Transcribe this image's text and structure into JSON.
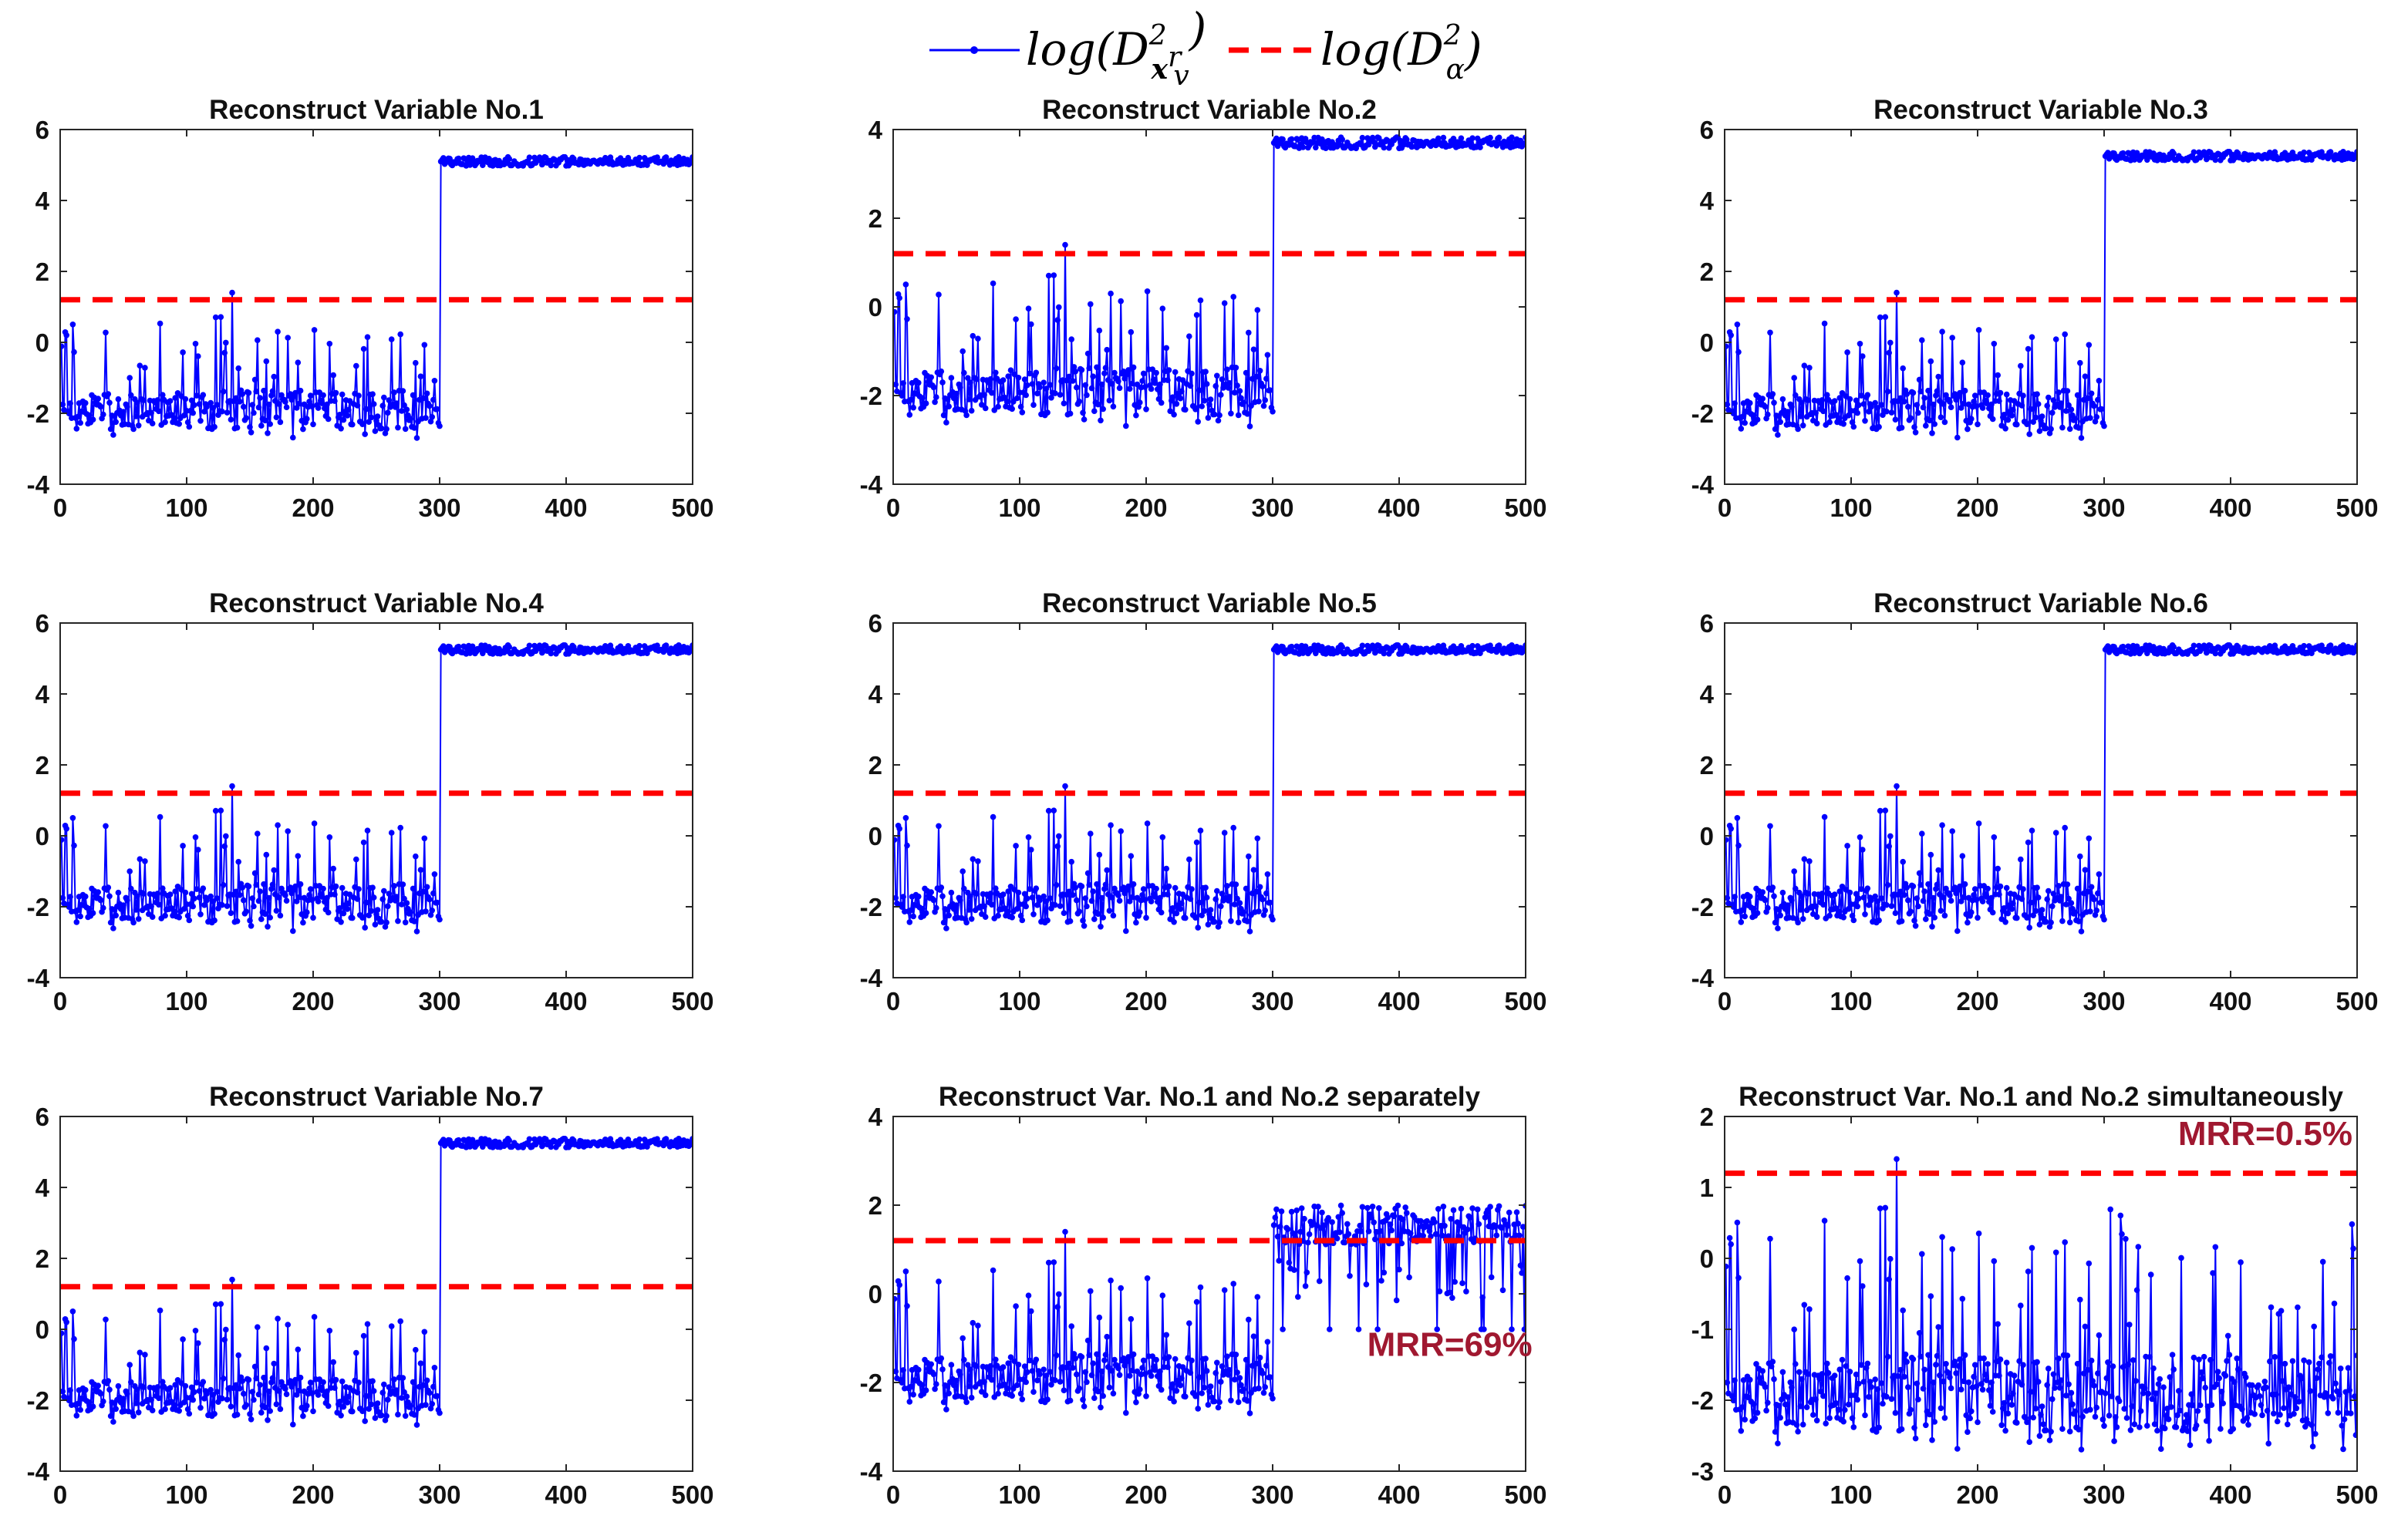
{
  "legend": {
    "series_label": {
      "pre": "log(D",
      "sup": "2",
      "sub_bold": "x",
      "sub_sup": "r",
      "sub_sub": "v",
      "post": ")"
    },
    "threshold_label": {
      "pre": "log(D",
      "sup": "2",
      "sub": "α",
      "post": ")"
    },
    "series_color": "#0000ff",
    "threshold_color": "#ff0000"
  },
  "chart_data": [
    {
      "type": "line",
      "title": "Reconstruct Variable No.1",
      "xlim": [
        0,
        500
      ],
      "ylim": [
        -4,
        6
      ],
      "xticks": [
        0,
        100,
        200,
        300,
        400,
        500
      ],
      "yticks": [
        -4,
        -2,
        0,
        2,
        4,
        6
      ],
      "threshold": 1.2,
      "pattern": "step",
      "pre_level": -1.9,
      "post_level": 5.1,
      "change_index": 300,
      "n_points": 500,
      "annotation": ""
    },
    {
      "type": "line",
      "title": "Reconstruct Variable No.2",
      "xlim": [
        0,
        500
      ],
      "ylim": [
        -4,
        4
      ],
      "xticks": [
        0,
        100,
        200,
        300,
        400,
        500
      ],
      "yticks": [
        -4,
        -2,
        0,
        2,
        4
      ],
      "threshold": 1.2,
      "pattern": "step",
      "pre_level": -1.9,
      "post_level": 3.7,
      "change_index": 300,
      "n_points": 500,
      "annotation": ""
    },
    {
      "type": "line",
      "title": "Reconstruct Variable No.3",
      "xlim": [
        0,
        500
      ],
      "ylim": [
        -4,
        6
      ],
      "xticks": [
        0,
        100,
        200,
        300,
        400,
        500
      ],
      "yticks": [
        -4,
        -2,
        0,
        2,
        4,
        6
      ],
      "threshold": 1.2,
      "pattern": "step",
      "pre_level": -1.9,
      "post_level": 5.25,
      "change_index": 300,
      "n_points": 500,
      "annotation": ""
    },
    {
      "type": "line",
      "title": "Reconstruct Variable No.4",
      "xlim": [
        0,
        500
      ],
      "ylim": [
        -4,
        6
      ],
      "xticks": [
        0,
        100,
        200,
        300,
        400,
        500
      ],
      "yticks": [
        -4,
        -2,
        0,
        2,
        4,
        6
      ],
      "threshold": 1.2,
      "pattern": "step",
      "pre_level": -1.9,
      "post_level": 5.25,
      "change_index": 300,
      "n_points": 500,
      "annotation": ""
    },
    {
      "type": "line",
      "title": "Reconstruct Variable No.5",
      "xlim": [
        0,
        500
      ],
      "ylim": [
        -4,
        6
      ],
      "xticks": [
        0,
        100,
        200,
        300,
        400,
        500
      ],
      "yticks": [
        -4,
        -2,
        0,
        2,
        4,
        6
      ],
      "threshold": 1.2,
      "pattern": "step",
      "pre_level": -1.9,
      "post_level": 5.25,
      "change_index": 300,
      "n_points": 500,
      "annotation": ""
    },
    {
      "type": "line",
      "title": "Reconstruct Variable No.6",
      "xlim": [
        0,
        500
      ],
      "ylim": [
        -4,
        6
      ],
      "xticks": [
        0,
        100,
        200,
        300,
        400,
        500
      ],
      "yticks": [
        -4,
        -2,
        0,
        2,
        4,
        6
      ],
      "threshold": 1.2,
      "pattern": "step",
      "pre_level": -1.9,
      "post_level": 5.25,
      "change_index": 300,
      "n_points": 500,
      "annotation": ""
    },
    {
      "type": "line",
      "title": "Reconstruct Variable No.7",
      "xlim": [
        0,
        500
      ],
      "ylim": [
        -4,
        6
      ],
      "xticks": [
        0,
        100,
        200,
        300,
        400,
        500
      ],
      "yticks": [
        -4,
        -2,
        0,
        2,
        4,
        6
      ],
      "threshold": 1.2,
      "pattern": "step",
      "pre_level": -1.9,
      "post_level": 5.25,
      "change_index": 300,
      "n_points": 500,
      "annotation": ""
    },
    {
      "type": "line",
      "title": "Reconstruct Var. No.1 and No.2 separately",
      "xlim": [
        0,
        500
      ],
      "ylim": [
        -4,
        4
      ],
      "xticks": [
        0,
        100,
        200,
        300,
        400,
        500
      ],
      "yticks": [
        -4,
        -2,
        0,
        2,
        4
      ],
      "threshold": 1.2,
      "pattern": "partial",
      "pre_level": -1.9,
      "post_level": 1.5,
      "change_index": 300,
      "n_points": 500,
      "annotation": "MRR=69%"
    },
    {
      "type": "line",
      "title": "Reconstruct Var. No.1 and No.2 simultaneously",
      "xlim": [
        0,
        500
      ],
      "ylim": [
        -3,
        2
      ],
      "xticks": [
        0,
        100,
        200,
        300,
        400,
        500
      ],
      "yticks": [
        -3,
        -2,
        -1,
        0,
        1,
        2
      ],
      "threshold": 1.2,
      "pattern": "none",
      "pre_level": -1.9,
      "post_level": -1.9,
      "change_index": 300,
      "n_points": 500,
      "annotation": "MRR=0.5%"
    }
  ]
}
